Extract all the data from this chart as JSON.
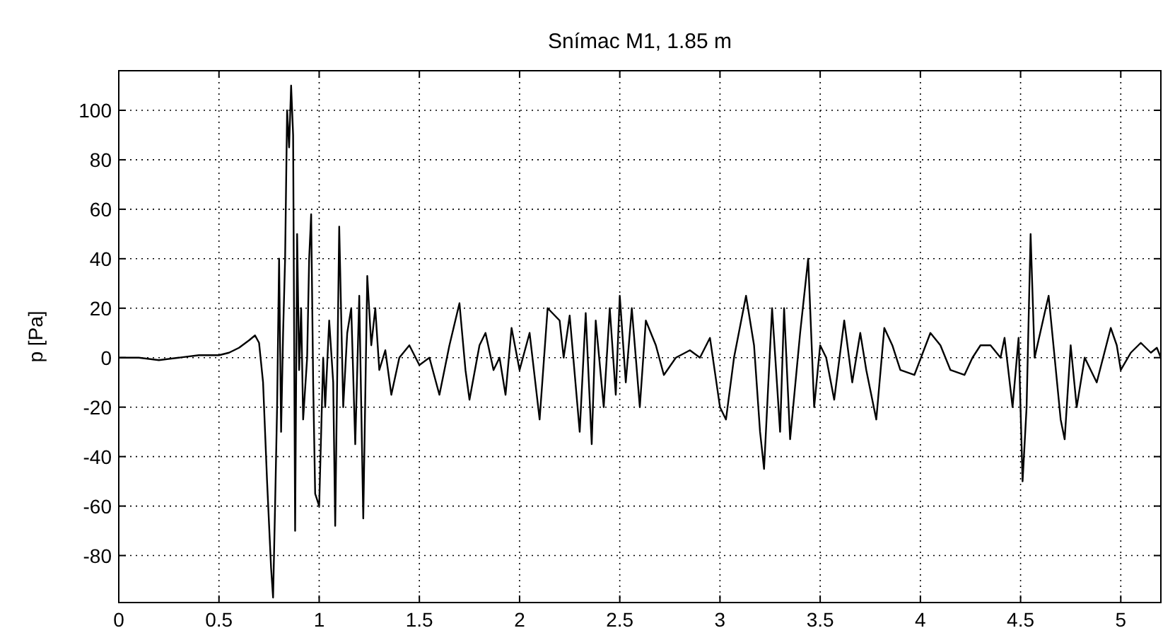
{
  "chart_data": {
    "type": "line",
    "title": "Snímac M1, 1.85 m",
    "ylabel": "p [Pa]",
    "xlim": [
      0,
      5.2
    ],
    "ylim": [
      -99,
      116
    ],
    "xticks": [
      0,
      0.5,
      1,
      1.5,
      2,
      2.5,
      3,
      3.5,
      4,
      4.5,
      5
    ],
    "yticks": [
      -80,
      -60,
      -40,
      -20,
      0,
      20,
      40,
      60,
      80,
      100
    ],
    "grid": true,
    "series": [
      {
        "color": "#000000",
        "x": [
          0,
          0.1,
          0.2,
          0.3,
          0.4,
          0.5,
          0.55,
          0.6,
          0.65,
          0.68,
          0.7,
          0.72,
          0.74,
          0.76,
          0.77,
          0.78,
          0.79,
          0.8,
          0.81,
          0.82,
          0.83,
          0.84,
          0.85,
          0.86,
          0.87,
          0.88,
          0.89,
          0.9,
          0.91,
          0.92,
          0.94,
          0.95,
          0.96,
          0.97,
          0.98,
          1.0,
          1.02,
          1.03,
          1.05,
          1.07,
          1.08,
          1.1,
          1.12,
          1.14,
          1.16,
          1.18,
          1.2,
          1.22,
          1.24,
          1.26,
          1.28,
          1.3,
          1.33,
          1.36,
          1.4,
          1.45,
          1.5,
          1.55,
          1.6,
          1.65,
          1.7,
          1.73,
          1.75,
          1.8,
          1.83,
          1.87,
          1.9,
          1.93,
          1.96,
          2.0,
          2.05,
          2.1,
          2.14,
          2.2,
          2.22,
          2.25,
          2.3,
          2.33,
          2.36,
          2.38,
          2.42,
          2.45,
          2.48,
          2.5,
          2.53,
          2.56,
          2.6,
          2.63,
          2.68,
          2.72,
          2.78,
          2.85,
          2.9,
          2.95,
          3.0,
          3.03,
          3.07,
          3.13,
          3.17,
          3.2,
          3.22,
          3.26,
          3.3,
          3.32,
          3.35,
          3.4,
          3.44,
          3.47,
          3.5,
          3.53,
          3.57,
          3.62,
          3.66,
          3.7,
          3.73,
          3.78,
          3.82,
          3.86,
          3.9,
          3.97,
          4.05,
          4.1,
          4.15,
          4.22,
          4.26,
          4.3,
          4.35,
          4.4,
          4.42,
          4.46,
          4.49,
          4.51,
          4.53,
          4.55,
          4.57,
          4.62,
          4.64,
          4.67,
          4.7,
          4.72,
          4.75,
          4.78,
          4.82,
          4.88,
          4.95,
          4.98,
          5.0,
          5.05,
          5.1,
          5.15,
          5.18,
          5.2
        ],
        "values": [
          0,
          0,
          -1,
          0,
          1,
          1,
          2,
          4,
          7,
          9,
          6,
          -10,
          -50,
          -85,
          -97,
          -60,
          -20,
          40,
          -30,
          10,
          40,
          100,
          85,
          110,
          90,
          -70,
          50,
          -5,
          20,
          -25,
          0,
          40,
          58,
          -10,
          -55,
          -60,
          0,
          -20,
          15,
          -10,
          -68,
          53,
          -20,
          10,
          20,
          -35,
          25,
          -65,
          33,
          5,
          20,
          -5,
          3,
          -15,
          0,
          5,
          -3,
          0,
          -15,
          5,
          22,
          -5,
          -17,
          5,
          10,
          -5,
          0,
          -15,
          12,
          -5,
          10,
          -25,
          20,
          15,
          0,
          17,
          -30,
          18,
          -35,
          15,
          -20,
          20,
          -15,
          25,
          -10,
          20,
          -20,
          15,
          5,
          -7,
          0,
          3,
          0,
          8,
          -20,
          -25,
          0,
          25,
          5,
          -30,
          -45,
          20,
          -30,
          20,
          -33,
          10,
          40,
          -20,
          5,
          0,
          -17,
          15,
          -10,
          10,
          -5,
          -25,
          12,
          5,
          -5,
          -7,
          10,
          5,
          -5,
          -7,
          0,
          5,
          5,
          0,
          8,
          -20,
          8,
          -50,
          -20,
          50,
          0,
          18,
          25,
          0,
          -25,
          -33,
          5,
          -20,
          0,
          -10,
          12,
          5,
          -5,
          2,
          6,
          2,
          4,
          0
        ]
      }
    ]
  }
}
